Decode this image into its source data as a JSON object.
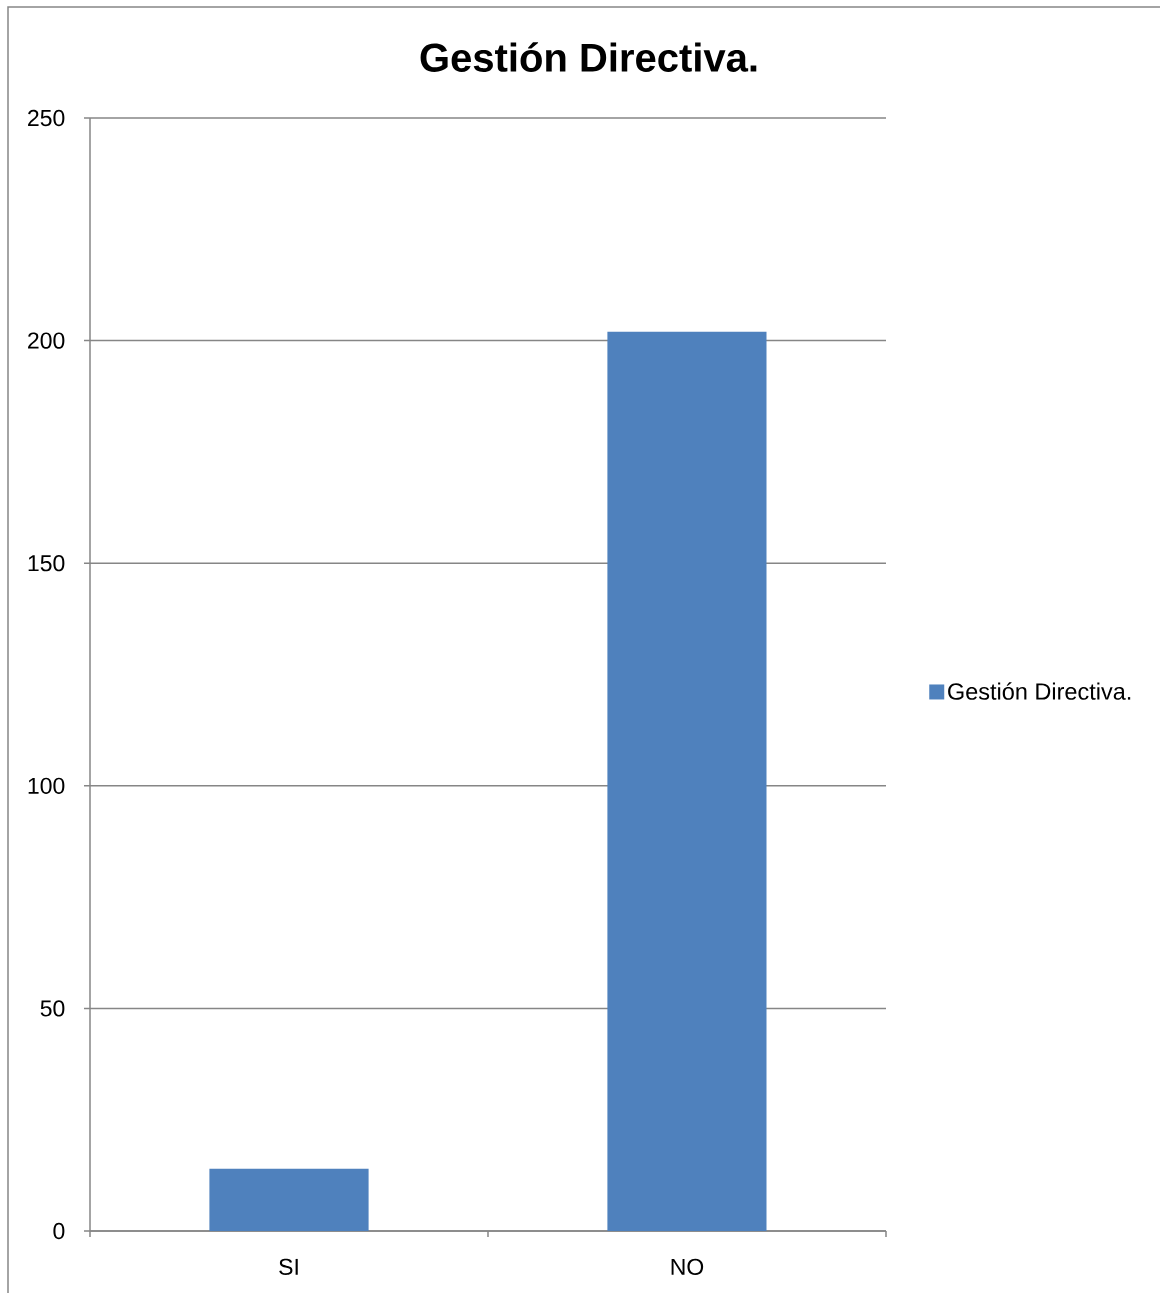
{
  "chart_data": {
    "type": "bar",
    "title": "Gestión Directiva.",
    "categories": [
      "SI",
      "NO"
    ],
    "series": [
      {
        "name": "Gestión Directiva.",
        "color": "#4f81bd",
        "values": [
          14,
          202
        ]
      }
    ],
    "ylim": [
      0,
      250
    ],
    "yticks": [
      0,
      50,
      100,
      150,
      200,
      250
    ],
    "grid": "y",
    "legend": "right"
  }
}
